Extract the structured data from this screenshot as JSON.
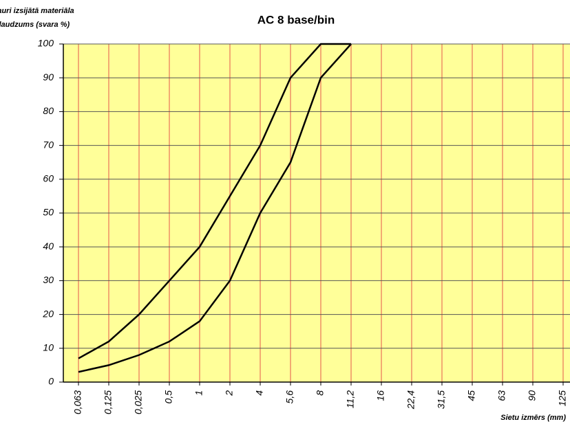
{
  "chart_data": {
    "type": "line",
    "title": "AC 8 base/bin",
    "ylabel": [
      "Cauri izsijātā materiāla",
      "daudzums (svara %)"
    ],
    "xlabel": "Sietu izmērs (mm)",
    "categories": [
      "0,063",
      "0,125",
      "0,025",
      "0,5",
      "1",
      "2",
      "4",
      "5,6",
      "8",
      "11,2",
      "16",
      "22,4",
      "31,5",
      "45",
      "63",
      "90",
      "125"
    ],
    "series": [
      {
        "color": "#000000",
        "values": [
          7,
          12,
          20,
          30,
          40,
          55,
          70,
          90,
          100,
          100,
          null,
          null,
          null,
          null,
          null,
          null,
          null
        ]
      },
      {
        "color": "#000000",
        "values": [
          3,
          5,
          8,
          12,
          18,
          30,
          50,
          65,
          90,
          100,
          null,
          null,
          null,
          null,
          null,
          null,
          null
        ]
      }
    ],
    "ylim": [
      0,
      100
    ],
    "yticks": [
      0,
      10,
      20,
      30,
      40,
      50,
      60,
      70,
      80,
      90,
      100
    ],
    "grid": true,
    "background": "#ffff99",
    "hgrid_color": "#555555",
    "vgrid_color": "#e8735a"
  }
}
